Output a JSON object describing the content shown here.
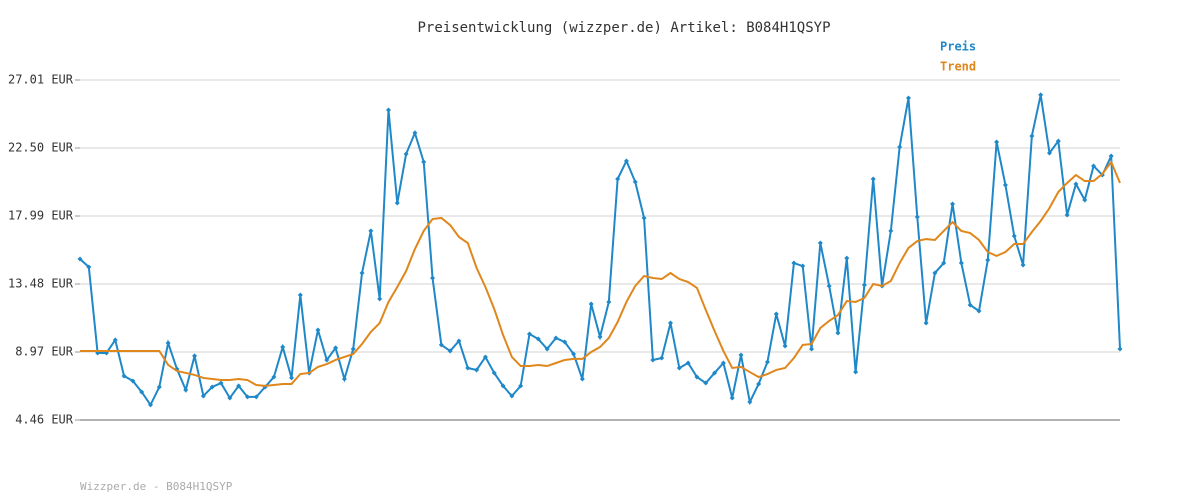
{
  "chart_data": {
    "type": "line",
    "title": "Preisentwicklung (wizzper.de) Artikel: B084H1QSYP",
    "footer": "Wizzper.de - B084H1QSYP",
    "series": [
      {
        "name": "Preis",
        "color": "#1f88c9",
        "marker": "diamond",
        "values": [
          15.14,
          14.61,
          8.9,
          8.9,
          9.77,
          7.38,
          7.05,
          6.32,
          5.46,
          6.65,
          9.57,
          7.84,
          6.45,
          8.71,
          6.05,
          6.65,
          6.91,
          5.92,
          6.72,
          5.99,
          5.99,
          6.65,
          7.31,
          9.3,
          7.25,
          12.75,
          7.58,
          10.43,
          8.44,
          9.24,
          7.18,
          9.17,
          14.21,
          17.0,
          12.49,
          25.02,
          18.85,
          22.1,
          23.5,
          21.57,
          13.88,
          9.44,
          9.04,
          9.7,
          7.91,
          7.78,
          8.64,
          7.58,
          6.72,
          6.05,
          6.72,
          10.16,
          9.83,
          9.17,
          9.9,
          9.63,
          8.84,
          7.18,
          12.15,
          9.97,
          12.29,
          20.44,
          21.64,
          20.25,
          17.86,
          8.44,
          8.57,
          10.89,
          7.91,
          8.24,
          7.31,
          6.91,
          7.58,
          8.24,
          5.92,
          8.77,
          5.65,
          6.85,
          8.31,
          11.49,
          9.37,
          14.87,
          14.67,
          9.17,
          16.2,
          13.35,
          10.23,
          15.2,
          7.64,
          13.41,
          20.44,
          13.35,
          17.0,
          22.57,
          25.82,
          17.92,
          10.89,
          14.21,
          14.87,
          18.79,
          14.87,
          12.09,
          11.69,
          15.07,
          22.9,
          20.05,
          16.66,
          14.74,
          23.3,
          26.02,
          22.17,
          22.96,
          18.06,
          20.11,
          19.05,
          21.31,
          20.71,
          21.97,
          9.17
        ]
      },
      {
        "name": "Trend",
        "color": "#e0871c",
        "values": [
          9.04,
          9.04,
          9.04,
          9.04,
          9.04,
          9.04,
          9.04,
          9.04,
          9.04,
          9.04,
          8.11,
          7.71,
          7.58,
          7.45,
          7.25,
          7.18,
          7.11,
          7.11,
          7.18,
          7.11,
          6.78,
          6.72,
          6.78,
          6.85,
          6.85,
          7.51,
          7.58,
          7.98,
          8.17,
          8.44,
          8.64,
          8.84,
          9.5,
          10.3,
          10.89,
          12.29,
          13.28,
          14.34,
          15.8,
          17.0,
          17.79,
          17.86,
          17.39,
          16.6,
          16.2,
          14.54,
          13.28,
          11.82,
          10.1,
          8.64,
          8.04,
          8.04,
          8.11,
          8.04,
          8.24,
          8.44,
          8.51,
          8.51,
          8.97,
          9.3,
          9.9,
          10.96,
          12.29,
          13.35,
          14.01,
          13.88,
          13.81,
          14.21,
          13.81,
          13.61,
          13.22,
          11.76,
          10.36,
          9.04,
          7.91,
          7.98,
          7.64,
          7.31,
          7.51,
          7.78,
          7.91,
          8.57,
          9.44,
          9.5,
          10.56,
          11.03,
          11.42,
          12.35,
          12.29,
          12.55,
          13.48,
          13.35,
          13.68,
          14.87,
          15.87,
          16.33,
          16.46,
          16.4,
          17.0,
          17.59,
          17.0,
          16.86,
          16.4,
          15.6,
          15.34,
          15.6,
          16.13,
          16.13,
          16.93,
          17.66,
          18.52,
          19.58,
          20.18,
          20.71,
          20.31,
          20.31,
          20.78,
          21.57,
          20.18
        ]
      }
    ],
    "ylim": [
      4.46,
      27.01
    ],
    "yticks": [
      {
        "value": 4.46,
        "label": "4.46 EUR"
      },
      {
        "value": 8.97,
        "label": "8.97 EUR"
      },
      {
        "value": 13.48,
        "label": "13.48 EUR"
      },
      {
        "value": 17.99,
        "label": "17.99 EUR"
      },
      {
        "value": 22.5,
        "label": "22.50 EUR"
      },
      {
        "value": 27.01,
        "label": "27.01 EUR"
      }
    ],
    "grid": true
  }
}
